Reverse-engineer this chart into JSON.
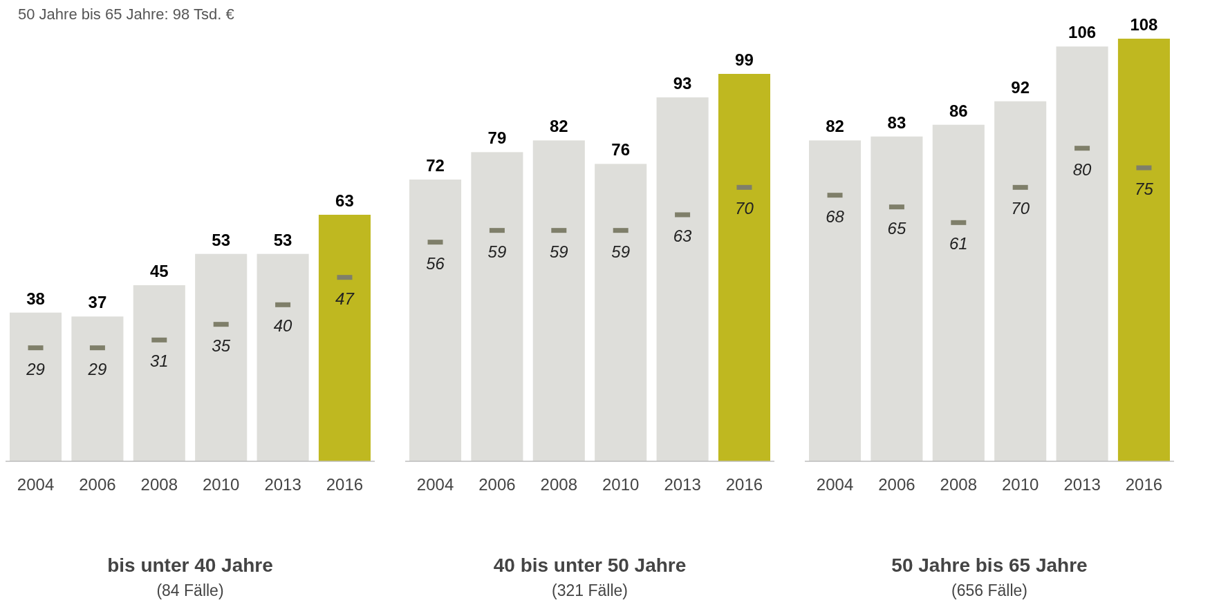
{
  "chart_data": [
    {
      "type": "bar",
      "title": "bis unter 40 Jahre",
      "subtitle": "(84 Fälle)",
      "annotations": [
        "50 Jahre bis 65 Jahre:  98 Tsd. €"
      ],
      "categories": [
        "2004",
        "2006",
        "2008",
        "2010",
        "2013",
        "2016"
      ],
      "data_labels": true,
      "series": [
        {
          "values": [
            38,
            37,
            45,
            53,
            53,
            63
          ],
          "colors": [
            "#dededa",
            "#dededa",
            "#dededa",
            "#dededa",
            "#dededa",
            "#bfb820"
          ]
        },
        {
          "type": "scatter",
          "values": [
            29,
            29,
            31,
            35,
            40,
            47
          ],
          "color": "#7f7f6a"
        }
      ]
    },
    {
      "type": "bar",
      "title": "40 bis unter 50 Jahre",
      "subtitle": "(321 Fälle)",
      "categories": [
        "2004",
        "2006",
        "2008",
        "2010",
        "2013",
        "2016"
      ],
      "data_labels": true,
      "series": [
        {
          "values": [
            72,
            79,
            82,
            76,
            93,
            99
          ],
          "colors": [
            "#dededa",
            "#dededa",
            "#dededa",
            "#dededa",
            "#dededa",
            "#bfb820"
          ]
        },
        {
          "type": "scatter",
          "values": [
            56,
            59,
            59,
            59,
            63,
            70
          ],
          "color": "#7f7f6a"
        }
      ]
    },
    {
      "type": "bar",
      "title": "50 Jahre bis 65 Jahre",
      "subtitle": "(656 Fälle)",
      "categories": [
        "2004",
        "2006",
        "2008",
        "2010",
        "2013",
        "2016"
      ],
      "data_labels": true,
      "series": [
        {
          "values": [
            82,
            83,
            86,
            92,
            106,
            108
          ],
          "colors": [
            "#dededa",
            "#dededa",
            "#dededa",
            "#dededa",
            "#dededa",
            "#bfb820"
          ]
        },
        {
          "type": "scatter",
          "values": [
            68,
            65,
            61,
            70,
            80,
            75
          ],
          "color": "#7f7f6a"
        }
      ]
    }
  ]
}
